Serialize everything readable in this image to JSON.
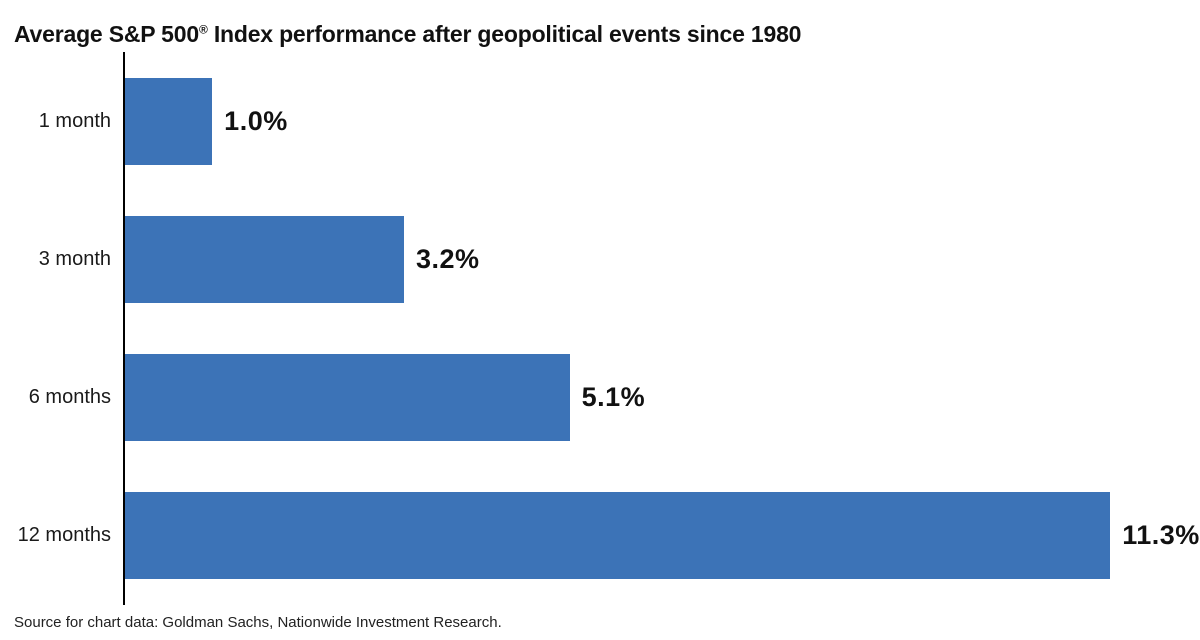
{
  "title": {
    "prefix": "Average S&P 500",
    "registered_mark": "®",
    "suffix": " Index performance after geopolitical events since 1980"
  },
  "source_note": "Source for chart data: Goldman Sachs, Nationwide Investment Research.",
  "colors": {
    "bar": "#3C73B7",
    "axis": "#000000",
    "text": "#111111"
  },
  "chart_data": {
    "type": "bar",
    "orientation": "horizontal",
    "title": "Average S&P 500® Index performance after geopolitical events since 1980",
    "categories": [
      "1 month",
      "3 month",
      "6 months",
      "12 months"
    ],
    "values": [
      1.0,
      3.2,
      5.1,
      11.3
    ],
    "value_labels": [
      "1.0%",
      "3.2%",
      "5.1%",
      "11.3%"
    ],
    "unit": "%",
    "xlabel": "",
    "ylabel": "",
    "xlim": [
      0,
      12.33
    ],
    "grid": false,
    "legend": false,
    "value_label_position": "right-of-bar",
    "source": "Source for chart data: Goldman Sachs, Nationwide Investment Research."
  }
}
